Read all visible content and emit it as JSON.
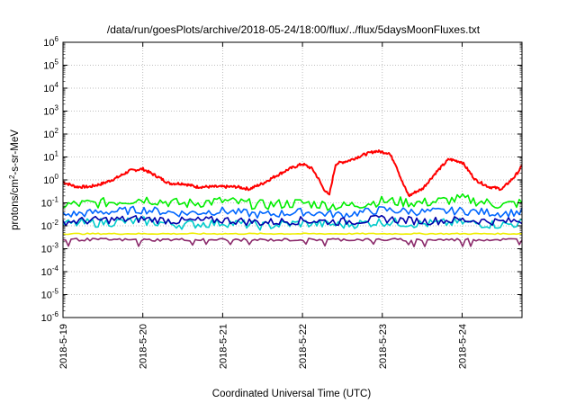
{
  "chart_data": {
    "type": "line",
    "title": "/data/run/goesPlots/archive/2018-05-24/18:00/flux/../flux/5daysMoonFluxes.txt",
    "xlabel": "Coordinated Universal Time (UTC)",
    "ylabel": "protons/cm2-s-sr-MeV",
    "ylabel_parts": {
      "pre": "protons/cm",
      "sup": "2",
      "post": "-s-sr-MeV"
    },
    "y_scale": "log",
    "ylim": [
      "1e-6",
      "1e6"
    ],
    "y_ticks": [
      {
        "base": "10",
        "exp": "-6"
      },
      {
        "base": "10",
        "exp": "-5"
      },
      {
        "base": "10",
        "exp": "-4"
      },
      {
        "base": "10",
        "exp": "-3"
      },
      {
        "base": "10",
        "exp": "-2"
      },
      {
        "base": "10",
        "exp": "-1"
      },
      {
        "base": "10",
        "exp": "0"
      },
      {
        "base": "10",
        "exp": "1"
      },
      {
        "base": "10",
        "exp": "2"
      },
      {
        "base": "10",
        "exp": "3"
      },
      {
        "base": "10",
        "exp": "4"
      },
      {
        "base": "10",
        "exp": "5"
      },
      {
        "base": "10",
        "exp": "6"
      }
    ],
    "x_ticks": [
      "2018-5-19",
      "2018-5-20",
      "2018-5-21",
      "2018-5-22",
      "2018-5-23",
      "2018-5-24"
    ],
    "xlim": [
      "2018-05-19 00:00",
      "2018-05-24 18:00"
    ],
    "grid": true,
    "series": [
      {
        "color": "#ff0000",
        "x": [
          "2018-05-19 00:00",
          "2018-05-19 04:00",
          "2018-05-19 08:00",
          "2018-05-19 12:00",
          "2018-05-19 16:00",
          "2018-05-19 20:00",
          "2018-05-20 00:00",
          "2018-05-20 04:00",
          "2018-05-20 08:00",
          "2018-05-20 12:00",
          "2018-05-20 16:00",
          "2018-05-20 20:00",
          "2018-05-21 00:00",
          "2018-05-21 04:00",
          "2018-05-21 08:00",
          "2018-05-21 12:00",
          "2018-05-21 16:00",
          "2018-05-21 20:00",
          "2018-05-22 00:00",
          "2018-05-22 03:00",
          "2018-05-22 05:00",
          "2018-05-22 06:00",
          "2018-05-22 08:00",
          "2018-05-22 10:00",
          "2018-05-22 11:00",
          "2018-05-22 14:00",
          "2018-05-22 18:00",
          "2018-05-22 22:00",
          "2018-05-23 02:00",
          "2018-05-23 04:00",
          "2018-05-23 06:00",
          "2018-05-23 08:00",
          "2018-05-23 10:00",
          "2018-05-23 12:00",
          "2018-05-23 16:00",
          "2018-05-23 20:00",
          "2018-05-24 00:00",
          "2018-05-24 04:00",
          "2018-05-24 08:00",
          "2018-05-24 12:00",
          "2018-05-24 16:00",
          "2018-05-24 18:00"
        ],
        "y": [
          0.8,
          0.5,
          0.5,
          0.7,
          1.2,
          2.5,
          3.0,
          1.5,
          0.7,
          0.7,
          0.5,
          0.5,
          0.5,
          0.5,
          0.4,
          0.7,
          1.5,
          3.0,
          5.0,
          3.0,
          1.0,
          0.5,
          0.2,
          5.0,
          5.5,
          7.0,
          12.0,
          18.0,
          15.0,
          5.0,
          0.8,
          0.2,
          0.3,
          0.4,
          2.0,
          8.0,
          6.0,
          1.0,
          0.5,
          0.4,
          1.5,
          4.0
        ]
      },
      {
        "color": "#00ee00",
        "x": [
          "2018-05-19 00:00",
          "2018-05-19 12:00",
          "2018-05-20 00:00",
          "2018-05-20 12:00",
          "2018-05-21 00:00",
          "2018-05-21 12:00",
          "2018-05-22 00:00",
          "2018-05-22 12:00",
          "2018-05-23 00:00",
          "2018-05-23 12:00",
          "2018-05-24 00:00",
          "2018-05-24 12:00",
          "2018-05-24 18:00"
        ],
        "y": [
          0.08,
          0.1,
          0.15,
          0.09,
          0.12,
          0.08,
          0.1,
          0.07,
          0.12,
          0.1,
          0.15,
          0.08,
          0.1
        ]
      },
      {
        "color": "#0066ff",
        "x": [
          "2018-05-19 00:00",
          "2018-05-19 12:00",
          "2018-05-20 00:00",
          "2018-05-20 12:00",
          "2018-05-21 00:00",
          "2018-05-21 12:00",
          "2018-05-22 00:00",
          "2018-05-22 12:00",
          "2018-05-23 00:00",
          "2018-05-23 12:00",
          "2018-05-24 00:00",
          "2018-05-24 12:00",
          "2018-05-24 18:00"
        ],
        "y": [
          0.03,
          0.04,
          0.05,
          0.035,
          0.045,
          0.03,
          0.04,
          0.03,
          0.05,
          0.04,
          0.045,
          0.035,
          0.04
        ]
      },
      {
        "color": "#00cccc",
        "x": [
          "2018-05-19 00:00",
          "2018-05-19 12:00",
          "2018-05-20 00:00",
          "2018-05-20 12:00",
          "2018-05-21 00:00",
          "2018-05-21 12:00",
          "2018-05-22 00:00",
          "2018-05-22 12:00",
          "2018-05-23 00:00",
          "2018-05-23 12:00",
          "2018-05-24 00:00",
          "2018-05-24 12:00",
          "2018-05-24 18:00"
        ],
        "y": [
          0.012,
          0.014,
          0.016,
          0.011,
          0.014,
          0.01,
          0.013,
          0.011,
          0.015,
          0.012,
          0.014,
          0.011,
          0.013
        ]
      },
      {
        "color": "#0000aa",
        "x": [
          "2018-05-19 00:00",
          "2018-05-19 12:00",
          "2018-05-20 00:00",
          "2018-05-20 12:00",
          "2018-05-21 00:00",
          "2018-05-21 12:00",
          "2018-05-22 00:00",
          "2018-05-22 12:00",
          "2018-05-23 00:00",
          "2018-05-23 12:00",
          "2018-05-24 00:00",
          "2018-05-24 12:00",
          "2018-05-24 18:00"
        ],
        "y": [
          0.015,
          0.018,
          0.02,
          0.016,
          0.018,
          0.014,
          0.017,
          0.015,
          0.02,
          0.016,
          0.018,
          0.015,
          0.017
        ]
      },
      {
        "color": "#eeee00",
        "x": [
          "2018-05-19 00:00",
          "2018-05-19 12:00",
          "2018-05-20 00:00",
          "2018-05-20 12:00",
          "2018-05-21 00:00",
          "2018-05-21 12:00",
          "2018-05-22 00:00",
          "2018-05-22 12:00",
          "2018-05-23 00:00",
          "2018-05-23 12:00",
          "2018-05-24 00:00",
          "2018-05-24 12:00",
          "2018-05-24 18:00"
        ],
        "y": [
          0.0045,
          0.0045,
          0.0045,
          0.0045,
          0.0045,
          0.0045,
          0.0045,
          0.0045,
          0.0045,
          0.0045,
          0.0045,
          0.0045,
          0.0045
        ]
      },
      {
        "color": "#8b2a6b",
        "x": [
          "2018-05-19 00:00",
          "2018-05-19 12:00",
          "2018-05-20 00:00",
          "2018-05-20 12:00",
          "2018-05-21 00:00",
          "2018-05-21 12:00",
          "2018-05-22 00:00",
          "2018-05-22 12:00",
          "2018-05-23 00:00",
          "2018-05-23 12:00",
          "2018-05-24 00:00",
          "2018-05-24 12:00",
          "2018-05-24 18:00"
        ],
        "y": [
          0.0025,
          0.0025,
          0.0024,
          0.0025,
          0.0025,
          0.0024,
          0.0025,
          0.0025,
          0.0025,
          0.0024,
          0.0025,
          0.0025,
          0.0025
        ]
      }
    ]
  }
}
